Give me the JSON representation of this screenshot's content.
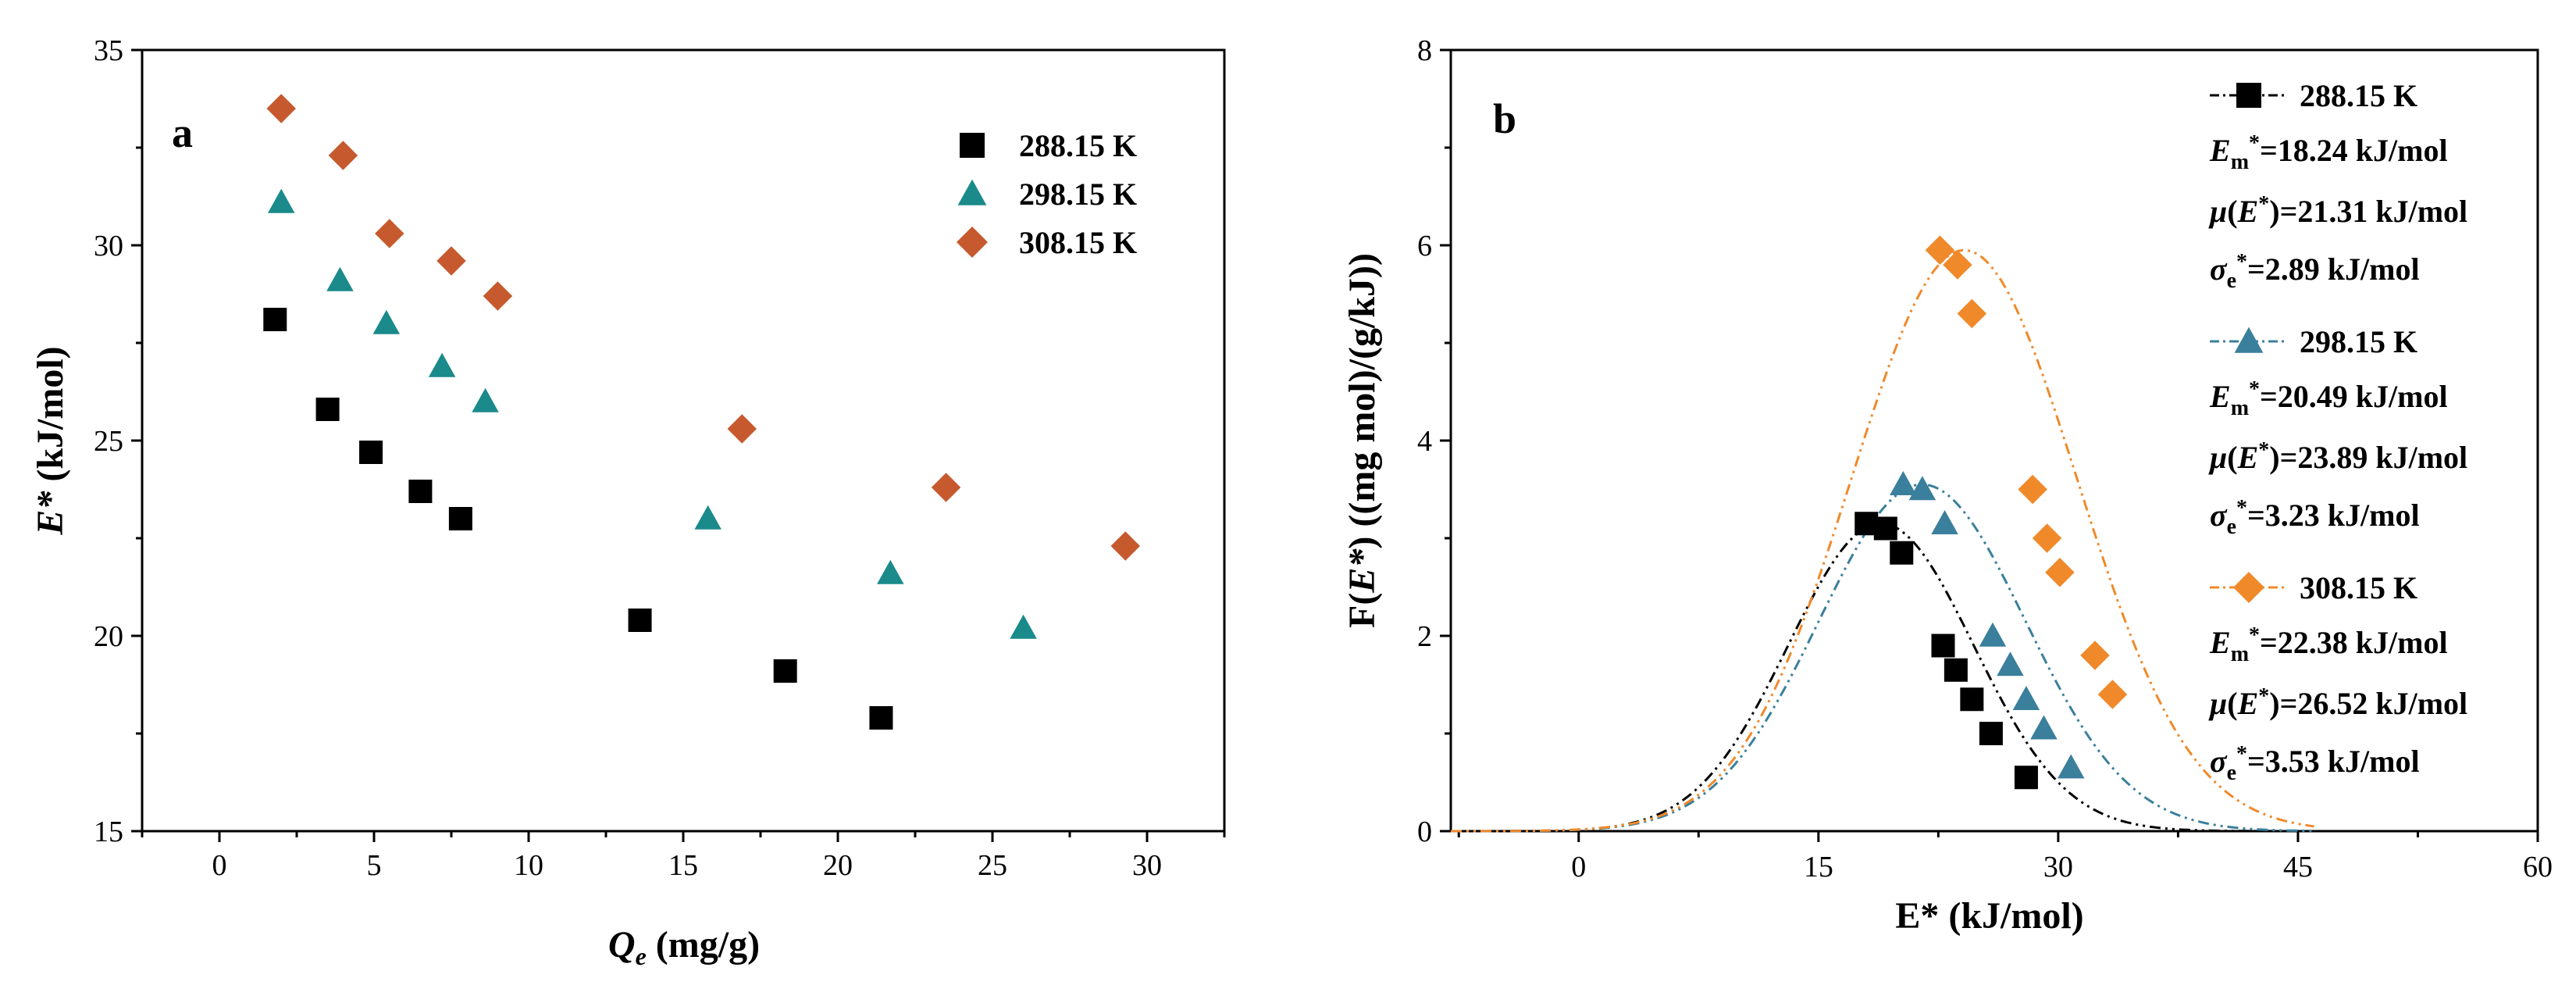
{
  "chart_data": [
    {
      "type": "scatter",
      "panel_label": "a",
      "xlabel_main": "Q",
      "xlabel_sub": "e",
      "xlabel_unit": " (mg/g)",
      "ylabel_main": "E*",
      "ylabel_unit": " (kJ/mol)",
      "xlim": [
        -2.5,
        32.5
      ],
      "ylim": [
        15,
        35
      ],
      "xticks": [
        0,
        5,
        10,
        15,
        20,
        25,
        30
      ],
      "yticks": [
        15,
        20,
        25,
        30,
        35
      ],
      "series": [
        {
          "name": "288.15 K",
          "marker": "square",
          "color": "#000000",
          "x": [
            1.8,
            3.5,
            4.9,
            6.5,
            7.8,
            13.6,
            18.3,
            21.4
          ],
          "y": [
            28.1,
            25.8,
            24.7,
            23.7,
            23.0,
            20.4,
            19.1,
            17.9
          ]
        },
        {
          "name": "298.15 K",
          "marker": "triangle",
          "color": "#1a8a8a",
          "x": [
            2.0,
            3.9,
            5.4,
            7.2,
            8.6,
            15.8,
            21.7,
            26.0
          ],
          "y": [
            31.1,
            29.1,
            28.0,
            26.9,
            26.0,
            23.0,
            21.6,
            20.2
          ]
        },
        {
          "name": "308.15 K",
          "marker": "diamond",
          "color": "#c65a2e",
          "x": [
            2.0,
            4.0,
            5.5,
            7.5,
            9.0,
            16.9,
            23.5,
            29.3
          ],
          "y": [
            33.5,
            32.3,
            30.3,
            29.6,
            28.7,
            25.3,
            23.8,
            22.3
          ]
        }
      ]
    },
    {
      "type": "line+scatter",
      "panel_label": "b",
      "xlabel": "E* (kJ/mol)",
      "ylabel_prefix": "F(",
      "ylabel_var": "E*",
      "ylabel_rest": ") ((mg mol)/(g/kJ))",
      "xlim": [
        -8,
        60
      ],
      "ylim": [
        0,
        8
      ],
      "xticks": [
        0,
        15,
        30,
        45,
        60
      ],
      "yticks": [
        0,
        2,
        4,
        6,
        8
      ],
      "series": [
        {
          "name": "288.15 K",
          "marker": "square",
          "color": "#000000",
          "Em": 18.24,
          "mu": 21.31,
          "sigma": 2.89,
          "Em_text": "=18.24 kJ/mol",
          "mu_text": "=21.31 kJ/mol",
          "sigma_text": "=2.89 kJ/mol",
          "x": [
            18.0,
            19.2,
            20.2,
            22.8,
            23.6,
            24.6,
            25.8,
            28.0
          ],
          "y": [
            3.15,
            3.1,
            2.85,
            1.9,
            1.65,
            1.35,
            1.0,
            0.55
          ]
        },
        {
          "name": "298.15 K",
          "marker": "triangle",
          "color": "#3a7f9c",
          "Em": 20.49,
          "mu": 23.89,
          "sigma": 3.23,
          "Em_text": "=20.49 kJ/mol",
          "mu_text": "=23.89 kJ/mol",
          "sigma_text": "=3.23 kJ/mol",
          "x": [
            20.3,
            21.5,
            22.9,
            25.9,
            27.0,
            28.0,
            29.1,
            30.8
          ],
          "y": [
            3.55,
            3.5,
            3.15,
            2.0,
            1.7,
            1.35,
            1.05,
            0.65
          ]
        },
        {
          "name": "308.15 K",
          "marker": "diamond",
          "color": "#f0892a",
          "Em": 22.38,
          "mu": 26.52,
          "sigma": 3.53,
          "Em_text": "=22.38 kJ/mol",
          "mu_text": "=26.52 kJ/mol",
          "sigma_text": "=3.53 kJ/mol",
          "x": [
            22.6,
            23.7,
            24.6,
            28.4,
            29.3,
            30.1,
            32.3,
            33.4
          ],
          "y": [
            5.95,
            5.8,
            5.3,
            3.5,
            3.0,
            2.65,
            1.8,
            1.4
          ]
        }
      ]
    }
  ]
}
